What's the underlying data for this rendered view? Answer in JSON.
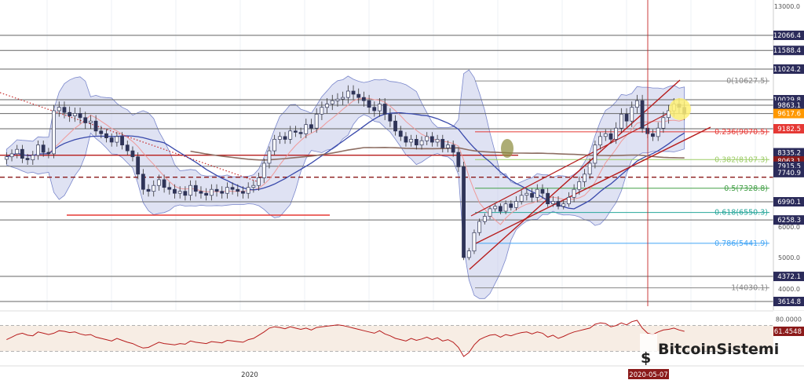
{
  "chart_data": {
    "type": "candlestick",
    "price_ticks": [
      "13000.0",
      "6000.0",
      "5000.0",
      "4000.0"
    ],
    "price_badges": [
      {
        "label": "12066.4",
        "value": 12066.4,
        "color": "#2b2b5a"
      },
      {
        "label": "11588.4",
        "value": 11588.4,
        "color": "#2b2b5a"
      },
      {
        "label": "11024.2",
        "value": 11024.2,
        "color": "#2b2b5a"
      },
      {
        "label": "10029.8",
        "value": 10029.8,
        "color": "#2b2b5a"
      },
      {
        "label": "9863.1",
        "value": 9863.1,
        "color": "#2b2b5a"
      },
      {
        "label": "9617.6",
        "value": 9617.6,
        "color": "#ff9800"
      },
      {
        "label": "9182.5",
        "value": 9182.5,
        "color": "#e53935"
      },
      {
        "label": "8335.2",
        "value": 8335.2,
        "color": "#2b2b5a"
      },
      {
        "label": "8063.1",
        "value": 8063.1,
        "color": "#8b1a1a"
      },
      {
        "label": "7915.5",
        "value": 7915.5,
        "color": "#2b2b5a"
      },
      {
        "label": "7740.9",
        "value": 7740.9,
        "color": "#2b2b5a"
      },
      {
        "label": "6990.1",
        "value": 6990.1,
        "color": "#2b2b5a"
      },
      {
        "label": "6258.3",
        "value": 6258.3,
        "color": "#2b2b5a"
      },
      {
        "label": "4372.1",
        "value": 4372.1,
        "color": "#2b2b5a"
      },
      {
        "label": "3614.8",
        "value": 3614.8,
        "color": "#2b2b5a"
      }
    ],
    "fib_levels": [
      {
        "label": "0(10627.5)",
        "value": 10627.5,
        "color": "#888888"
      },
      {
        "label": "0.236(9070.5)",
        "value": 9070.5,
        "color": "#e53935"
      },
      {
        "label": "0.382(8107.3)",
        "value": 8107.3,
        "color": "#9ccc65"
      },
      {
        "label": "0.5(7328.8)",
        "value": 7328.8,
        "color": "#43a047"
      },
      {
        "label": "0.618(6550.3)",
        "value": 6550.3,
        "color": "#26a69a"
      },
      {
        "label": "0.786(5441.9)",
        "value": 5441.9,
        "color": "#42a5f5"
      },
      {
        "label": "1(4030.1)",
        "value": 4030.1,
        "color": "#888888"
      }
    ],
    "horizontal_levels": [
      12066.4,
      11588.4,
      11024.2,
      10029.8,
      9863.1,
      9617.6,
      9182.5,
      7915.5,
      6990.1,
      6258.3,
      4372.1,
      3614.8
    ],
    "close_series": [
      8200,
      8300,
      8450,
      8150,
      8100,
      8250,
      8600,
      8350,
      8300,
      9700,
      9800,
      9650,
      9550,
      9620,
      9500,
      9350,
      9400,
      9100,
      9000,
      8850,
      8700,
      8900,
      8600,
      8400,
      8200,
      7700,
      7300,
      7250,
      7400,
      7550,
      7350,
      7300,
      7200,
      7250,
      7150,
      7400,
      7250,
      7200,
      7150,
      7300,
      7250,
      7200,
      7350,
      7300,
      7250,
      7200,
      7350,
      7400,
      7600,
      8000,
      8400,
      8800,
      8900,
      8800,
      9100,
      9050,
      9000,
      9300,
      9200,
      9600,
      9800,
      9900,
      10000,
      10050,
      10100,
      10300,
      10200,
      10100,
      10000,
      9800,
      9700,
      9900,
      9600,
      9400,
      9100,
      8900,
      8700,
      8800,
      8600,
      8750,
      8900,
      8700,
      8800,
      8500,
      8600,
      8350,
      7900,
      5000,
      5200,
      5800,
      6200,
      6400,
      6700,
      6800,
      6600,
      6900,
      6750,
      7000,
      7150,
      7200,
      7100,
      7300,
      7200,
      6900,
      7000,
      6800,
      6900,
      7100,
      7300,
      7500,
      7700,
      8000,
      8600,
      8900,
      9000,
      8800,
      9200,
      9600,
      9400,
      9800,
      10000,
      9200,
      9000,
      8900,
      9200,
      9500,
      9700,
      9900,
      9800,
      9600
    ],
    "x_labels": [
      "2020",
      "2020-05-07"
    ],
    "rsi_ticks": [
      "80.0000"
    ],
    "rsi_value_label": "61.4548",
    "rsi_levels": [
      70,
      30
    ],
    "rsi_series": [
      48,
      52,
      56,
      58,
      55,
      54,
      60,
      58,
      56,
      58,
      62,
      61,
      59,
      60,
      57,
      55,
      56,
      52,
      50,
      48,
      46,
      50,
      47,
      44,
      42,
      38,
      35,
      36,
      40,
      44,
      42,
      41,
      40,
      42,
      41,
      46,
      44,
      43,
      42,
      45,
      44,
      43,
      47,
      46,
      45,
      44,
      48,
      50,
      55,
      60,
      66,
      68,
      67,
      65,
      68,
      66,
      64,
      66,
      63,
      67,
      68,
      69,
      70,
      71,
      70,
      68,
      66,
      64,
      62,
      60,
      58,
      62,
      57,
      54,
      50,
      48,
      46,
      50,
      47,
      49,
      52,
      48,
      51,
      46,
      48,
      44,
      36,
      22,
      28,
      40,
      48,
      52,
      55,
      56,
      52,
      56,
      54,
      57,
      59,
      60,
      57,
      60,
      58,
      52,
      55,
      50,
      53,
      57,
      60,
      62,
      64,
      66,
      72,
      74,
      73,
      68,
      70,
      74,
      71,
      76,
      78,
      66,
      58,
      56,
      60,
      63,
      64,
      66,
      63,
      61
    ],
    "annotation_date": "2020-05-07",
    "logo_text": "BitcoinSistemi"
  }
}
